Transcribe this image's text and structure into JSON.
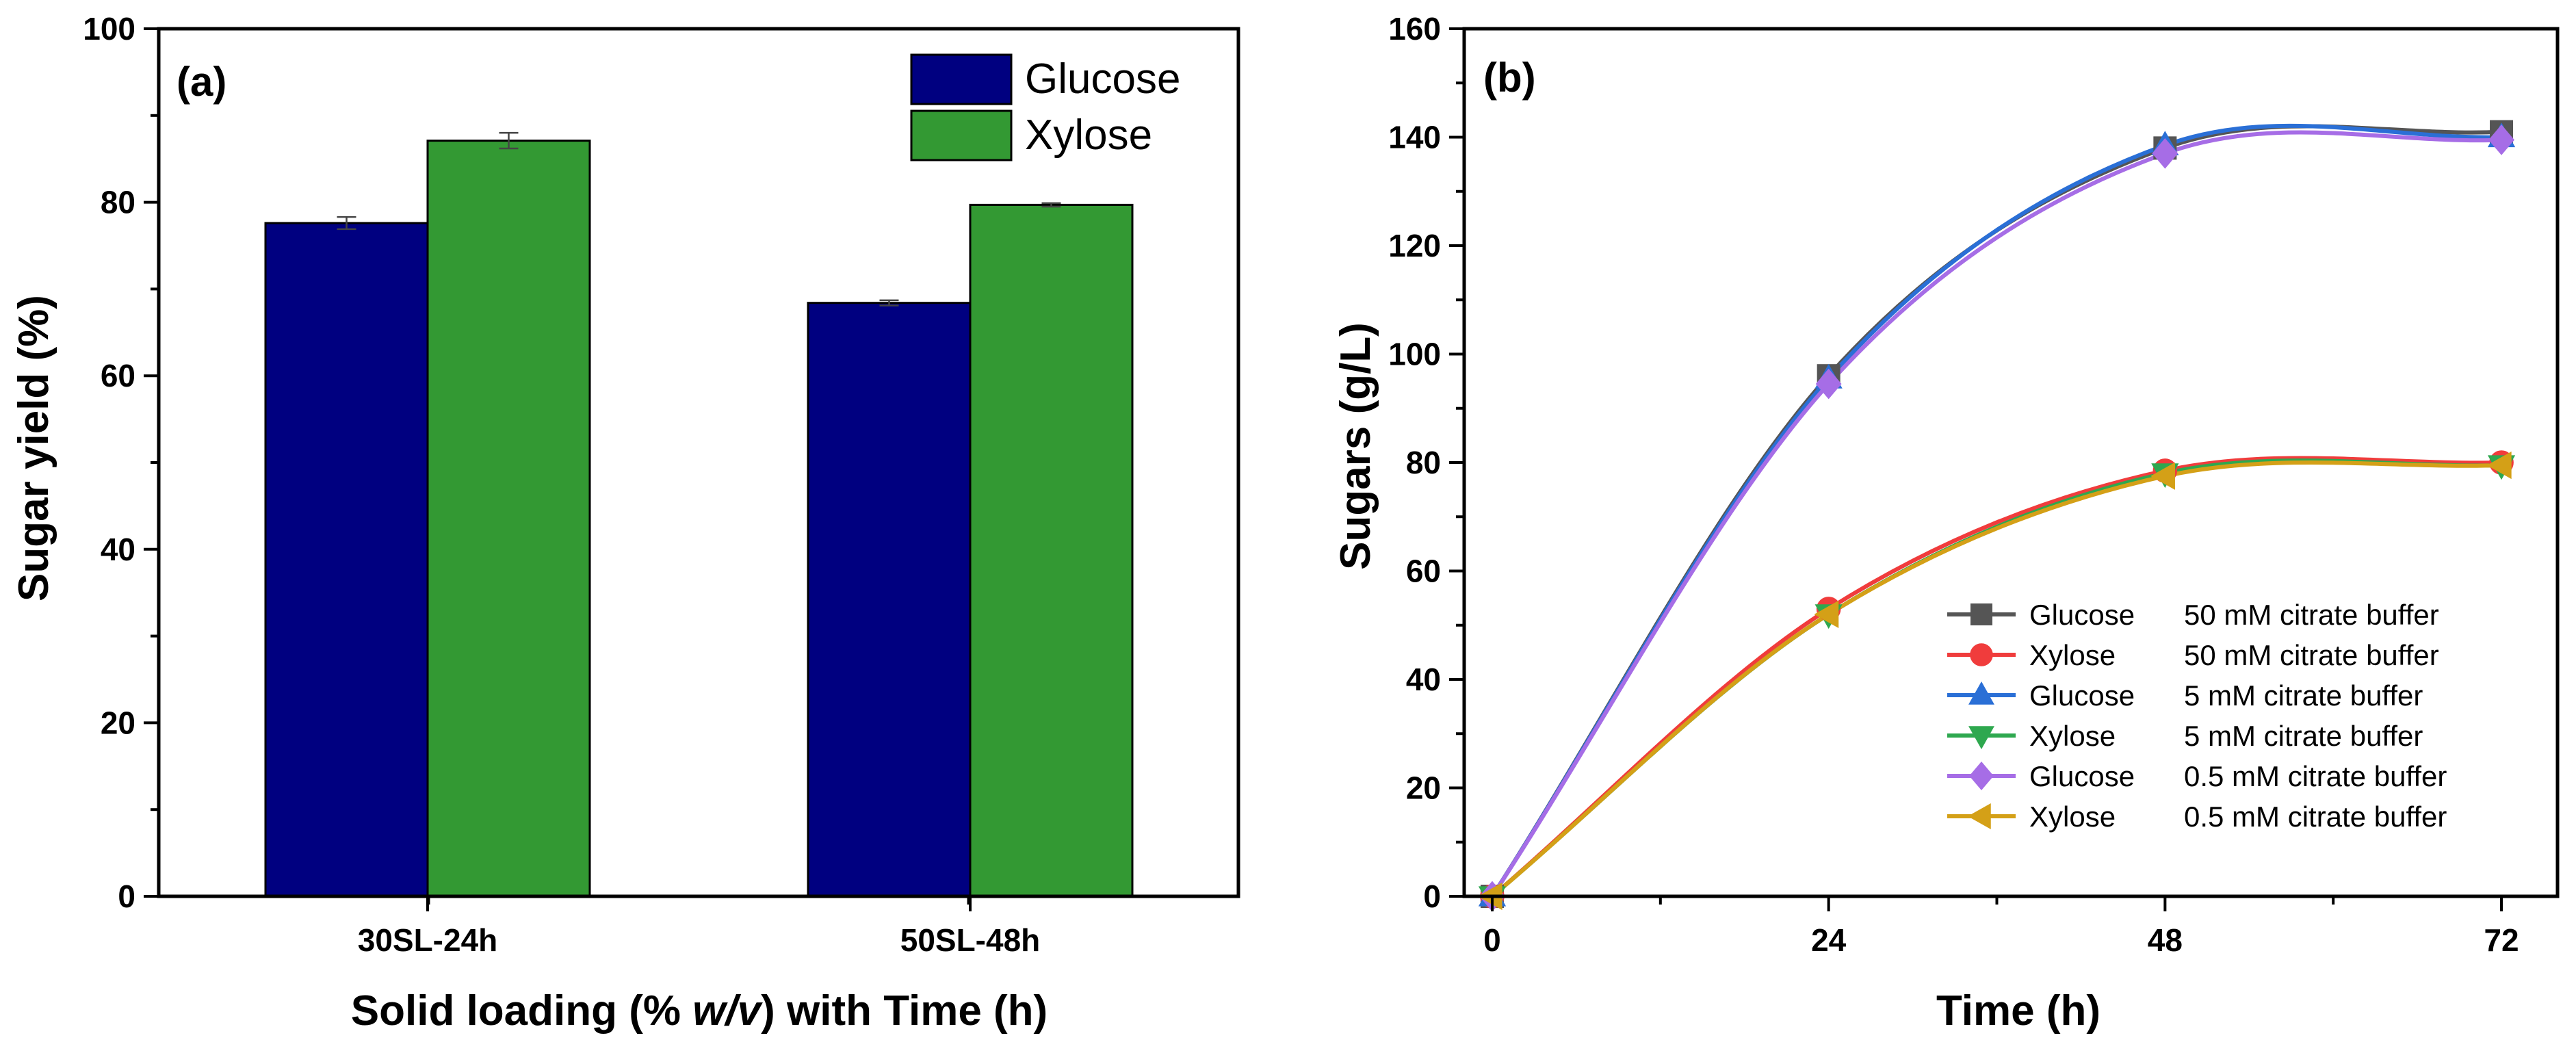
{
  "chart_data": [
    {
      "type": "bar",
      "panel_label": "(a)",
      "categories": [
        "30SL-24h",
        "50SL-48h"
      ],
      "series": [
        {
          "name": "Glucose",
          "color": "#000080",
          "values": [
            77.6,
            68.4
          ],
          "errors": [
            0.7,
            0.3
          ]
        },
        {
          "name": "Xylose",
          "color": "#339933",
          "values": [
            87.1,
            79.7
          ],
          "errors": [
            0.9,
            0.2
          ]
        }
      ],
      "xlabel_parts": [
        "Solid loading (% ",
        "w/v",
        ") with Time (h)"
      ],
      "ylabel": "Sugar yield (%)",
      "ylim": [
        0,
        100
      ],
      "yticks": [
        "0",
        "20",
        "40",
        "60",
        "80",
        "100"
      ],
      "legend_position": "top-right"
    },
    {
      "type": "line",
      "panel_label": "(b)",
      "x": [
        0,
        24,
        48,
        72
      ],
      "xticks": [
        "0",
        "24",
        "48",
        "72"
      ],
      "series": [
        {
          "name": "Glucose",
          "condition": "50 mM citrate buffer",
          "color": "#555555",
          "marker": "square",
          "values": [
            0,
            96,
            138,
            141
          ]
        },
        {
          "name": "Xylose",
          "condition": "50 mM citrate buffer",
          "color": "#f03c3c",
          "marker": "circle",
          "values": [
            0,
            53,
            78.5,
            80
          ]
        },
        {
          "name": "Glucose",
          "condition": "5 mM citrate buffer",
          "color": "#2a6fd6",
          "marker": "triangle-up",
          "values": [
            0,
            95.5,
            138.5,
            140
          ]
        },
        {
          "name": "Xylose",
          "condition": "5 mM citrate buffer",
          "color": "#2ea84f",
          "marker": "triangle-down",
          "values": [
            0,
            52,
            78,
            79.5
          ]
        },
        {
          "name": "Glucose",
          "condition": "0.5 mM citrate buffer",
          "color": "#a66de6",
          "marker": "diamond",
          "values": [
            0,
            94.5,
            137,
            139.5
          ]
        },
        {
          "name": "Xylose",
          "condition": "0.5 mM citrate buffer",
          "color": "#d4a017",
          "marker": "triangle-left",
          "values": [
            0,
            52,
            77.5,
            79.5
          ]
        }
      ],
      "xlabel": "Time (h)",
      "ylabel": "Sugars (g/L)",
      "xlim": [
        -2,
        76
      ],
      "ylim": [
        0,
        160
      ],
      "yticks": [
        "0",
        "20",
        "40",
        "60",
        "80",
        "100",
        "120",
        "140",
        "160"
      ],
      "legend_position": "bottom-right"
    }
  ]
}
